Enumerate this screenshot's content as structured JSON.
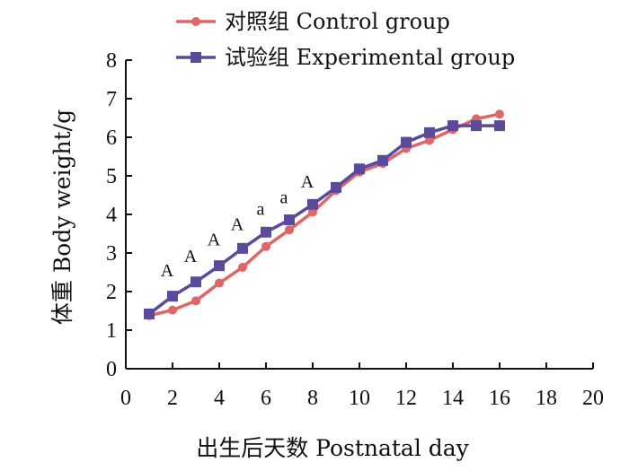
{
  "chart_data": {
    "type": "line",
    "xlabel": "出生后天数  Postnatal day",
    "ylabel": "体重  Body weight/g",
    "xlim": [
      0,
      20
    ],
    "ylim": [
      0,
      8
    ],
    "xticks": [
      "0",
      "2",
      "4",
      "6",
      "8",
      "10",
      "12",
      "14",
      "16",
      "18",
      "20"
    ],
    "yticks": [
      "0",
      "1",
      "2",
      "3",
      "4",
      "5",
      "6",
      "7",
      "8"
    ],
    "grid": false,
    "legend_position": "top",
    "series": [
      {
        "name": "对照组 Control group",
        "color": "#e06666",
        "marker": "circle",
        "x": [
          1,
          2,
          3,
          4,
          5,
          6,
          7,
          8,
          9,
          10,
          11,
          12,
          13,
          14,
          15,
          16
        ],
        "y": [
          1.38,
          1.52,
          1.76,
          2.22,
          2.63,
          3.17,
          3.6,
          4.06,
          4.62,
          5.1,
          5.32,
          5.71,
          5.92,
          6.2,
          6.48,
          6.6
        ]
      },
      {
        "name": "试验组 Experimental group",
        "color": "#5a4a9c",
        "marker": "square",
        "x": [
          1,
          2,
          3,
          4,
          5,
          6,
          7,
          8,
          9,
          10,
          11,
          12,
          13,
          14,
          15,
          16
        ],
        "y": [
          1.42,
          1.88,
          2.25,
          2.67,
          3.12,
          3.54,
          3.86,
          4.26,
          4.7,
          5.18,
          5.4,
          5.87,
          6.12,
          6.3,
          6.3,
          6.3
        ]
      }
    ],
    "annotations": [
      {
        "x": 2,
        "y": 2.3,
        "text": "A"
      },
      {
        "x": 3,
        "y": 2.67,
        "text": "A"
      },
      {
        "x": 4,
        "y": 3.1,
        "text": "A"
      },
      {
        "x": 5,
        "y": 3.5,
        "text": "A"
      },
      {
        "x": 6,
        "y": 3.9,
        "text": "a"
      },
      {
        "x": 7,
        "y": 4.2,
        "text": "a"
      },
      {
        "x": 8,
        "y": 4.6,
        "text": "A"
      }
    ]
  }
}
